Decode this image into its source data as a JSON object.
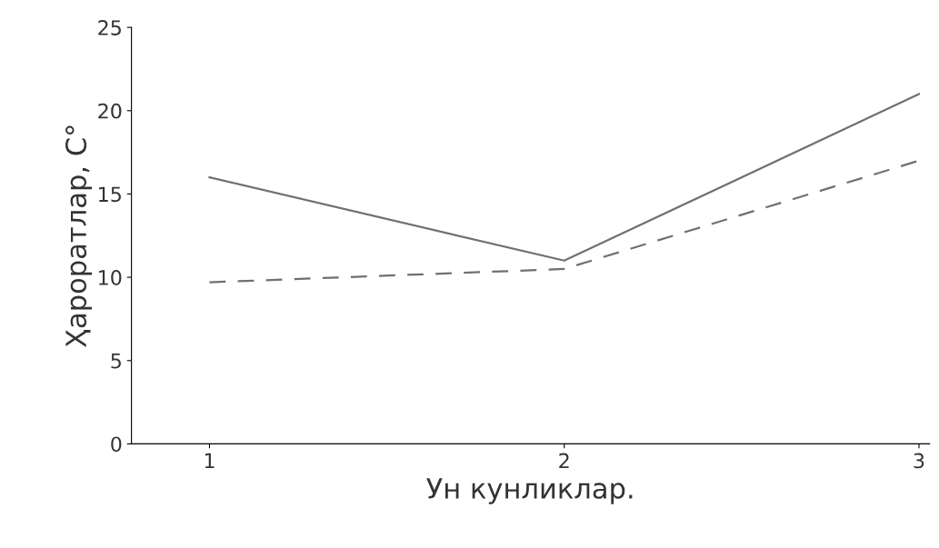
{
  "chart_data": {
    "type": "line",
    "xlabel": "Ун кунликлар.",
    "ylabel": "Ҳароратлар, C°",
    "x": [
      1,
      2,
      3
    ],
    "series": [
      {
        "color": "#707070",
        "line_style": "solid",
        "values": [
          16,
          11,
          21
        ]
      },
      {
        "color": "#707070",
        "line_style": "dashed",
        "values": [
          9.7,
          10.5,
          17
        ]
      }
    ],
    "xlim": [
      0.78,
      3.03
    ],
    "xticks": [
      1,
      2,
      3
    ],
    "ylim": [
      0,
      25
    ],
    "yticks": [
      0,
      5,
      10,
      15,
      20,
      25
    ],
    "grid": false,
    "legend": false,
    "marker": "none"
  }
}
